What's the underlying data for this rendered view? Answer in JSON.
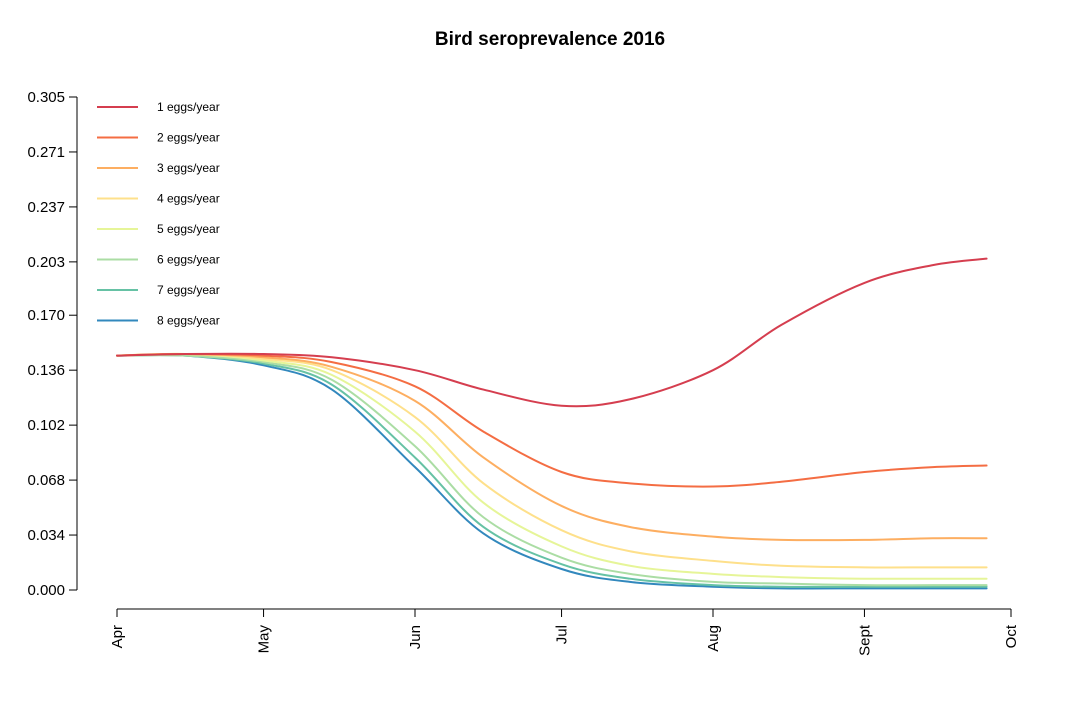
{
  "chart_data": {
    "type": "line",
    "title": "Bird seroprevalence 2016",
    "xlabel": "",
    "ylabel": "",
    "x_ticks": [
      "Apr",
      "May",
      "Jun",
      "Jul",
      "Aug",
      "Sept",
      "Oct"
    ],
    "y_ticks": [
      "0.000",
      "0.034",
      "0.068",
      "0.102",
      "0.136",
      "0.170",
      "0.203",
      "0.237",
      "0.271",
      "0.305"
    ],
    "y_tick_values": [
      0.0,
      0.034,
      0.068,
      0.102,
      0.136,
      0.17,
      0.203,
      0.237,
      0.271,
      0.305
    ],
    "ylim": [
      0.0,
      0.305
    ],
    "x_dates": [
      "2016-04-01",
      "2016-04-15",
      "2016-05-01",
      "2016-05-15",
      "2016-06-01",
      "2016-06-15",
      "2016-07-01",
      "2016-07-15",
      "2016-08-01",
      "2016-08-15",
      "2016-09-01",
      "2016-09-15",
      "2016-09-26"
    ],
    "xlim": [
      "2016-04-01",
      "2016-10-01"
    ],
    "grid": false,
    "legend_position": "top-left",
    "series": [
      {
        "name": "1 eggs/year",
        "color": "#D53E4F",
        "values": [
          0.145,
          0.146,
          0.146,
          0.144,
          0.136,
          0.124,
          0.114,
          0.118,
          0.136,
          0.164,
          0.19,
          0.201,
          0.205
        ]
      },
      {
        "name": "2 eggs/year",
        "color": "#F46D43",
        "values": [
          0.145,
          0.146,
          0.145,
          0.141,
          0.126,
          0.098,
          0.073,
          0.066,
          0.064,
          0.067,
          0.073,
          0.076,
          0.077
        ]
      },
      {
        "name": "3 eggs/year",
        "color": "#FDAE61",
        "values": [
          0.145,
          0.146,
          0.144,
          0.138,
          0.117,
          0.082,
          0.052,
          0.039,
          0.033,
          0.031,
          0.031,
          0.032,
          0.032
        ]
      },
      {
        "name": "4 eggs/year",
        "color": "#FEE08B",
        "values": [
          0.145,
          0.146,
          0.143,
          0.136,
          0.107,
          0.066,
          0.037,
          0.024,
          0.018,
          0.015,
          0.014,
          0.014,
          0.014
        ]
      },
      {
        "name": "5 eggs/year",
        "color": "#E6F598",
        "values": [
          0.145,
          0.146,
          0.142,
          0.133,
          0.098,
          0.054,
          0.027,
          0.015,
          0.01,
          0.008,
          0.007,
          0.007,
          0.007
        ]
      },
      {
        "name": "6 eggs/year",
        "color": "#ABDDA4",
        "values": [
          0.145,
          0.145,
          0.141,
          0.13,
          0.089,
          0.045,
          0.02,
          0.01,
          0.005,
          0.004,
          0.003,
          0.003,
          0.003
        ]
      },
      {
        "name": "7 eggs/year",
        "color": "#66C2A5",
        "values": [
          0.145,
          0.145,
          0.14,
          0.127,
          0.082,
          0.039,
          0.016,
          0.007,
          0.003,
          0.002,
          0.002,
          0.002,
          0.002
        ]
      },
      {
        "name": "8 eggs/year",
        "color": "#3288BD",
        "values": [
          0.145,
          0.145,
          0.139,
          0.124,
          0.076,
          0.035,
          0.013,
          0.005,
          0.002,
          0.001,
          0.001,
          0.001,
          0.001
        ]
      }
    ]
  }
}
